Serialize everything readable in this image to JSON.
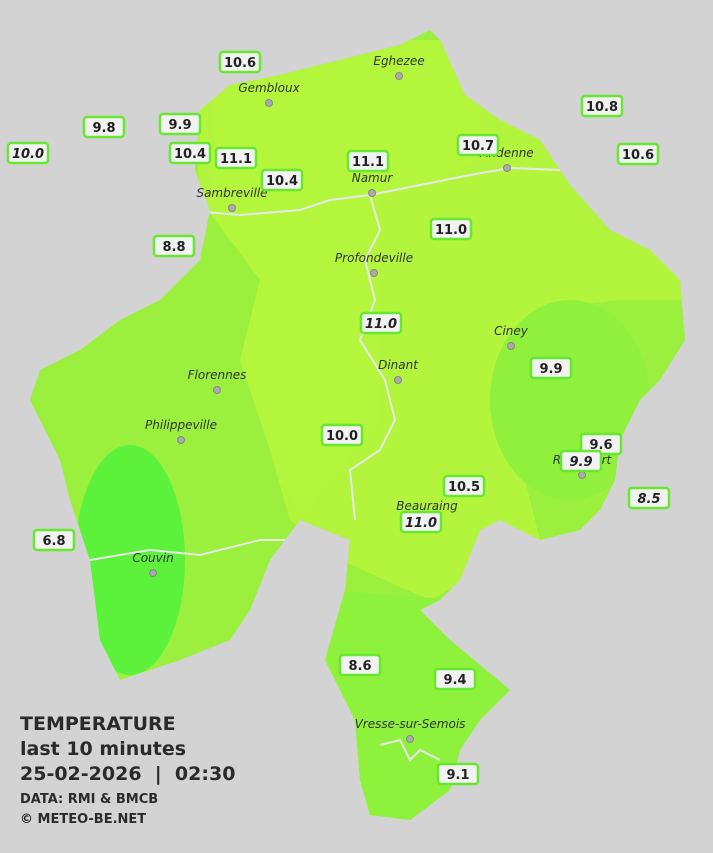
{
  "legend": {
    "title": "TEMPERATURE",
    "period": "last 10 minutes",
    "datetime": "25-02-2026  |  02:30",
    "source": "DATA: RMI & BMCB",
    "credit": "© METEO-BE.NET"
  },
  "cities": [
    "Eghezee",
    "Gembloux",
    "Andenne",
    "Namur",
    "Sambreville",
    "Profondeville",
    "Ciney",
    "Florennes",
    "Dinant",
    "Philippeville",
    "Rochefort",
    "Beauraing",
    "Couvin",
    "Vresse-sur-Semois"
  ],
  "stations": [
    "10.6",
    "9.8",
    "9.9",
    "10.0",
    "10.4",
    "11.1",
    "10.4",
    "11.1",
    "10.7",
    "10.8",
    "10.6",
    "8.8",
    "11.0",
    "11.0",
    "9.9",
    "10.0",
    "9.6",
    "9.9",
    "10.5",
    "11.0",
    "8.5",
    "6.8",
    "8.6",
    "9.4",
    "9.1"
  ]
}
